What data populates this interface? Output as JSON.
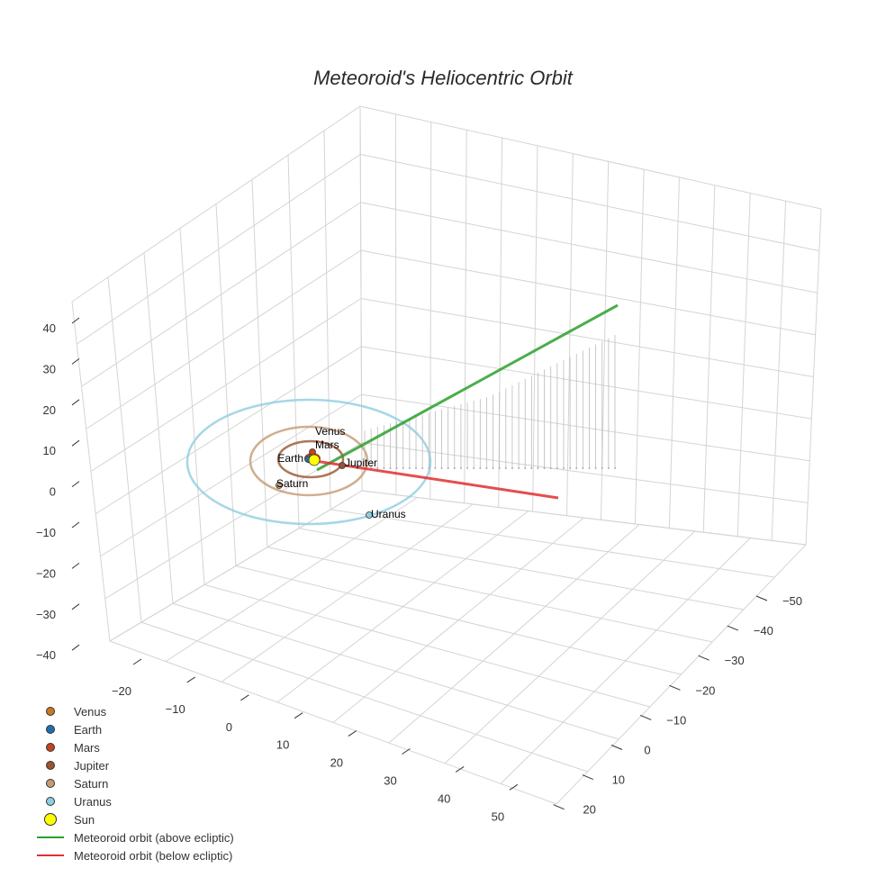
{
  "chart_data": {
    "type": "scatter3d",
    "title": "Meteoroid's Heliocentric Orbit",
    "x_ticks": [
      "−20",
      "−10",
      "0",
      "10",
      "20",
      "30",
      "40",
      "50"
    ],
    "y_ticks": [
      "−50",
      "−40",
      "−30",
      "−20",
      "−10",
      "0",
      "10",
      "20"
    ],
    "z_ticks": [
      "40",
      "30",
      "20",
      "10",
      "0",
      "−10",
      "−20",
      "−30",
      "−40"
    ],
    "grid": true,
    "legend_position": "bottom-left",
    "planets": [
      {
        "name": "Venus",
        "color": "#c77a1e"
      },
      {
        "name": "Earth",
        "color": "#1f6fb0"
      },
      {
        "name": "Mars",
        "color": "#c4451c"
      },
      {
        "name": "Jupiter",
        "color": "#9a5530"
      },
      {
        "name": "Saturn",
        "color": "#c49a72"
      },
      {
        "name": "Uranus",
        "color": "#8ecde0"
      }
    ],
    "sun": {
      "name": "Sun",
      "color": "#ffff00"
    },
    "series": [
      {
        "name": "Meteoroid orbit (above ecliptic)",
        "color": "#2ca02c"
      },
      {
        "name": "Meteoroid orbit (below ecliptic)",
        "color": "#e03030"
      }
    ]
  }
}
